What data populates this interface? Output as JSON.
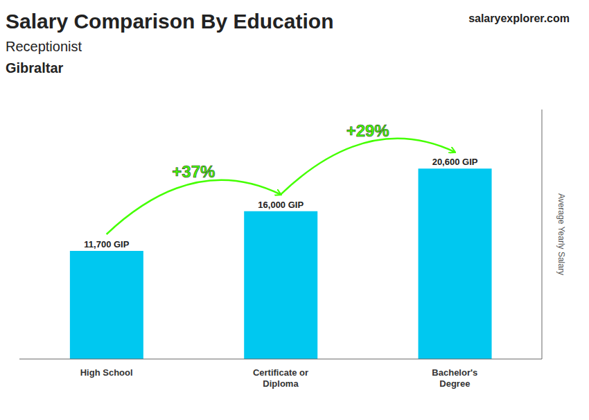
{
  "chart_data": {
    "type": "bar",
    "title": "Salary Comparison By Education",
    "subtitle": [
      "Receptionist",
      "Gibraltar"
    ],
    "source": "salaryexplorer.com",
    "ylabel": "Average Yearly Salary",
    "categories": [
      "High School",
      "Certificate or\nDiploma",
      "Bachelor's\nDegree"
    ],
    "values": [
      11700,
      16000,
      20600
    ],
    "value_labels": [
      "11,700 GIP",
      "16,000 GIP",
      "20,600 GIP"
    ],
    "data_labels": true,
    "annotations": [
      {
        "text": "+37%",
        "color": "#44ff00"
      },
      {
        "text": "+29%",
        "color": "#44ff00"
      }
    ],
    "color": "#00c8f0",
    "ylim": [
      0,
      27000
    ],
    "tick_labels": "x",
    "grid": false
  }
}
